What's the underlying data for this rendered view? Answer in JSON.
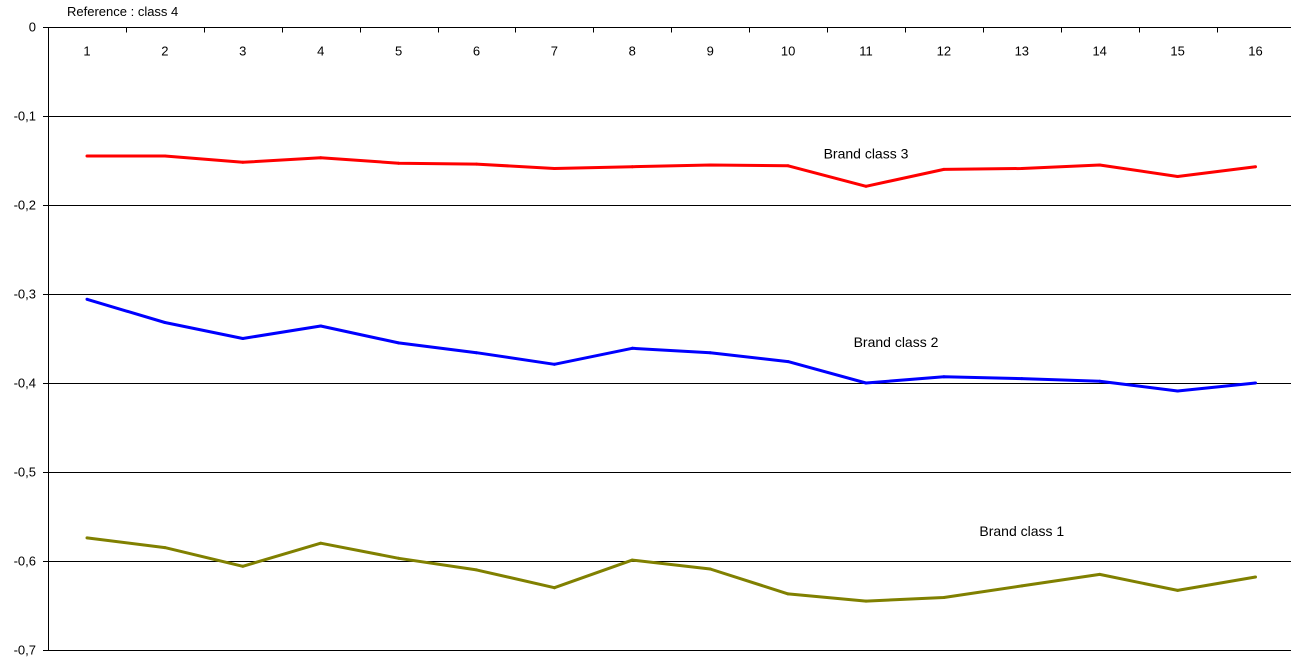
{
  "chart_data": {
    "type": "line",
    "title": "",
    "reference_note": "Reference : class 4",
    "xlabel": "",
    "ylabel": "",
    "x": [
      1,
      2,
      3,
      4,
      5,
      6,
      7,
      8,
      9,
      10,
      11,
      12,
      13,
      14,
      15,
      16
    ],
    "x_tick_labels": [
      "1",
      "2",
      "3",
      "4",
      "5",
      "6",
      "7",
      "8",
      "9",
      "10",
      "11",
      "12",
      "13",
      "14",
      "15",
      "16"
    ],
    "x_axis_position": "top",
    "ylim": [
      -0.7,
      0
    ],
    "y_ticks": [
      0,
      -0.1,
      -0.2,
      -0.3,
      -0.4,
      -0.5,
      -0.6,
      -0.7
    ],
    "y_tick_labels": [
      "0",
      "-0,1",
      "-0,2",
      "-0,3",
      "-0,4",
      "-0,5",
      "-0,6",
      "-0,7"
    ],
    "grid": true,
    "legend": "none",
    "series": [
      {
        "name": "Brand class 3",
        "color": "#ff0000",
        "values": [
          -0.145,
          -0.145,
          -0.152,
          -0.147,
          -0.153,
          -0.154,
          -0.159,
          -0.157,
          -0.155,
          -0.156,
          -0.179,
          -0.16,
          -0.159,
          -0.155,
          -0.168,
          -0.157
        ]
      },
      {
        "name": "Brand class 2",
        "color": "#0000ff",
        "values": [
          -0.306,
          -0.332,
          -0.35,
          -0.336,
          -0.355,
          -0.366,
          -0.379,
          -0.361,
          -0.366,
          -0.376,
          -0.4,
          -0.393,
          -0.395,
          -0.398,
          -0.409,
          -0.4
        ]
      },
      {
        "name": "Brand class 1",
        "color": "#808000",
        "values": [
          -0.574,
          -0.585,
          -0.606,
          -0.58,
          -0.597,
          -0.61,
          -0.63,
          -0.599,
          -0.609,
          -0.637,
          -0.645,
          -0.641,
          -0.628,
          -0.615,
          -0.633,
          -0.618
        ]
      }
    ]
  }
}
